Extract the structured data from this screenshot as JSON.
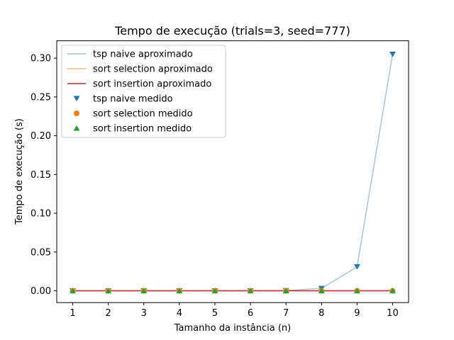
{
  "chart_data": {
    "type": "line",
    "title": "Tempo de execução (trials=3, seed=777)",
    "xlabel": "Tamanho da instância (n)",
    "ylabel": "Tempo de execução (s)",
    "x": [
      1,
      2,
      3,
      4,
      5,
      6,
      7,
      8,
      9,
      10
    ],
    "xticks": [
      1,
      2,
      3,
      4,
      5,
      6,
      7,
      8,
      9,
      10
    ],
    "yticks": [
      0.0,
      0.05,
      0.1,
      0.15,
      0.2,
      0.25,
      0.3
    ],
    "ytick_labels": [
      "0.00",
      "0.05",
      "0.10",
      "0.15",
      "0.20",
      "0.25",
      "0.30"
    ],
    "xlim": [
      0.55,
      10.45
    ],
    "ylim": [
      -0.0152,
      0.3224
    ],
    "grid": false,
    "legend_position": "upper-left",
    "series": [
      {
        "name": "tsp naive aproximado",
        "kind": "fit-line",
        "color": "#a6c6e0",
        "values": [
          0,
          0,
          0,
          0,
          0,
          1e-05,
          0.0003,
          0.0031,
          0.031,
          0.305
        ]
      },
      {
        "name": "sort selection aproximado",
        "kind": "fit-line",
        "color": "#ffb97a",
        "values": [
          0,
          0,
          0,
          0,
          0,
          0,
          0,
          0,
          0,
          0
        ]
      },
      {
        "name": "sort insertion aproximado",
        "kind": "fit-line",
        "color": "#d62728",
        "values": [
          0,
          0,
          0,
          0,
          0,
          0,
          0,
          0,
          0,
          0
        ]
      },
      {
        "name": "tsp naive medido",
        "kind": "measured",
        "marker": "triangle-down",
        "color": "#1f77b4",
        "values": [
          0,
          0,
          0,
          0,
          0,
          1e-05,
          0.0003,
          0.0031,
          0.031,
          0.305
        ]
      },
      {
        "name": "sort selection medido",
        "kind": "measured",
        "marker": "circle",
        "color": "#ff7f0e",
        "values": [
          0,
          0,
          0,
          0,
          0,
          0,
          0,
          0,
          0,
          0
        ]
      },
      {
        "name": "sort insertion medido",
        "kind": "measured",
        "marker": "triangle-up",
        "color": "#2ca02c",
        "values": [
          0,
          0,
          0,
          0,
          0,
          0,
          0,
          0,
          0,
          0
        ]
      }
    ]
  }
}
